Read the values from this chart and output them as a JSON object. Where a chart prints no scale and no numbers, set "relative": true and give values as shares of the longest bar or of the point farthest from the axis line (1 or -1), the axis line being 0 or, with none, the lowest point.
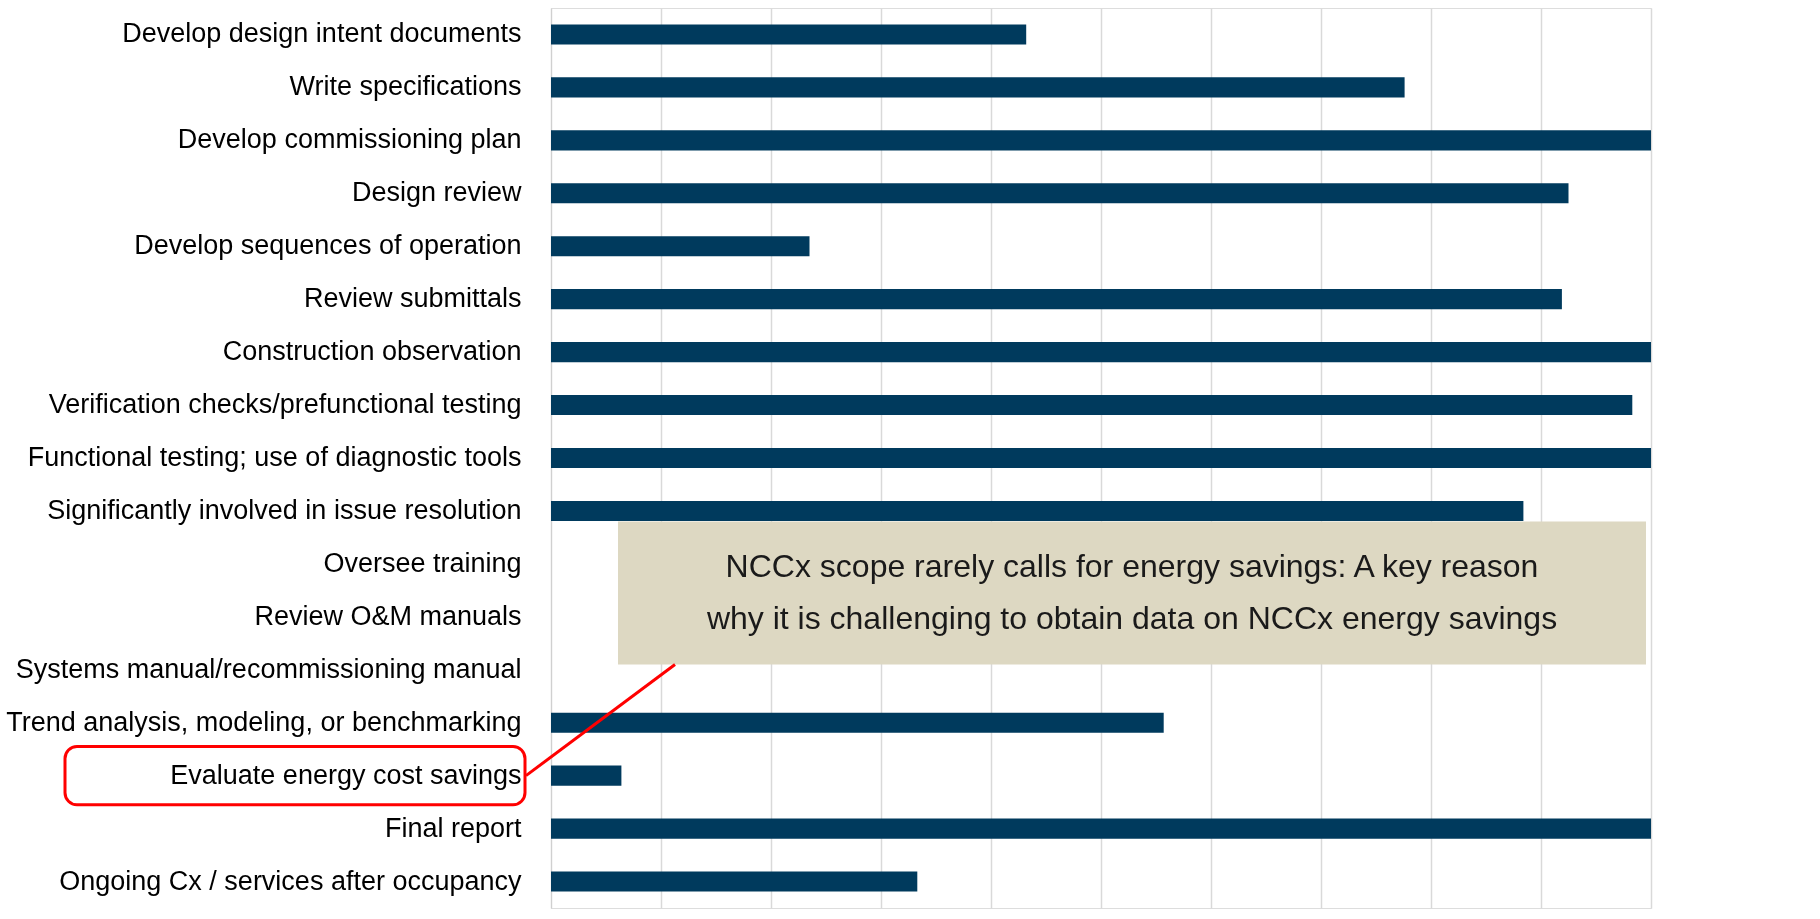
{
  "chart_data": {
    "type": "bar",
    "orientation": "horizontal",
    "relative": true,
    "grid": "x",
    "tick_labels": "y",
    "categories": [
      "Develop design intent documents",
      "Write specifications",
      "Develop commissioning plan",
      "Design review",
      "Develop sequences of operation",
      "Review submittals",
      "Construction observation",
      "Verification checks/prefunctional testing",
      "Functional testing; use of diagnostic tools",
      "Significantly involved in issue resolution",
      "Oversee training",
      "Review O&M manuals",
      "Systems manual/recommissioning manual",
      "Trend analysis, modeling, or benchmarking",
      "Evaluate energy cost savings",
      "Final report",
      "Ongoing Cx / services after occupancy"
    ],
    "series": [
      {
        "color": "#003a5d",
        "values": [
          0.432,
          0.776,
          1,
          0.925,
          0.235,
          0.919,
          1,
          0.983,
          1,
          0.884,
          null,
          null,
          null,
          0.557,
          0.064,
          1,
          0.333
        ]
      }
    ],
    "annotations": [
      "NCCx scope rarely calls for energy savings: A key reason why it is challenging to obtain data on NCCx energy savings"
    ]
  }
}
